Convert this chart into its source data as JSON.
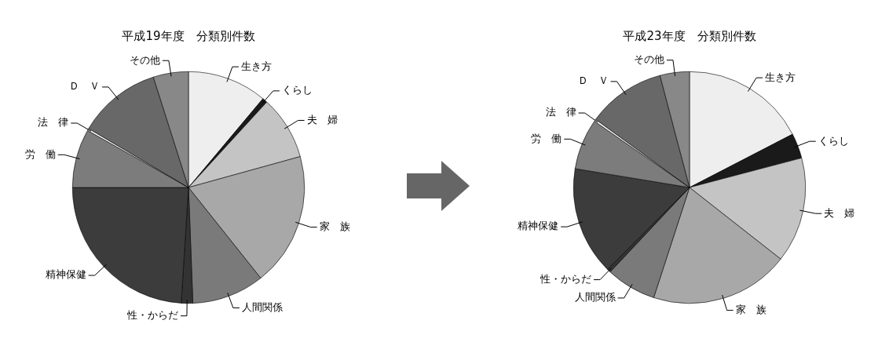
{
  "chart_data": [
    {
      "type": "pie",
      "title": "平成19年度　分類別件数",
      "legend": false,
      "categories": [
        "生き方",
        "くらし",
        "夫　婦",
        "家　族",
        "人間関係",
        "性・からだ",
        "精神保健",
        "労　働",
        "法　律",
        "Ｄ　Ｖ",
        "その他"
      ],
      "values": [
        11.1,
        0.7,
        8.9,
        18.6,
        10.1,
        1.6,
        24.0,
        8.2,
        0.3,
        11.6,
        4.9
      ],
      "colors": [
        "#eeeeee",
        "#1a1a1a",
        "#c4c4c4",
        "#a8a8a8",
        "#7a7a7a",
        "#333333",
        "#3c3c3c",
        "#7c7c7c",
        "#f4f4f4",
        "#686868",
        "#888888"
      ]
    },
    {
      "type": "pie",
      "title": "平成23年度　分類別件数",
      "legend": false,
      "categories": [
        "生き方",
        "くらし",
        "夫　婦",
        "家　族",
        "人間関係",
        "性・からだ",
        "精神保健",
        "労　働",
        "法　律",
        "Ｄ　Ｖ",
        "その他"
      ],
      "values": [
        17.4,
        3.5,
        14.7,
        19.4,
        7.0,
        0.5,
        15.1,
        7.1,
        0.3,
        10.9,
        4.1
      ],
      "colors": [
        "#eeeeee",
        "#1a1a1a",
        "#c4c4c4",
        "#a8a8a8",
        "#7a7a7a",
        "#333333",
        "#3c3c3c",
        "#7c7c7c",
        "#f4f4f4",
        "#686868",
        "#888888"
      ]
    }
  ]
}
